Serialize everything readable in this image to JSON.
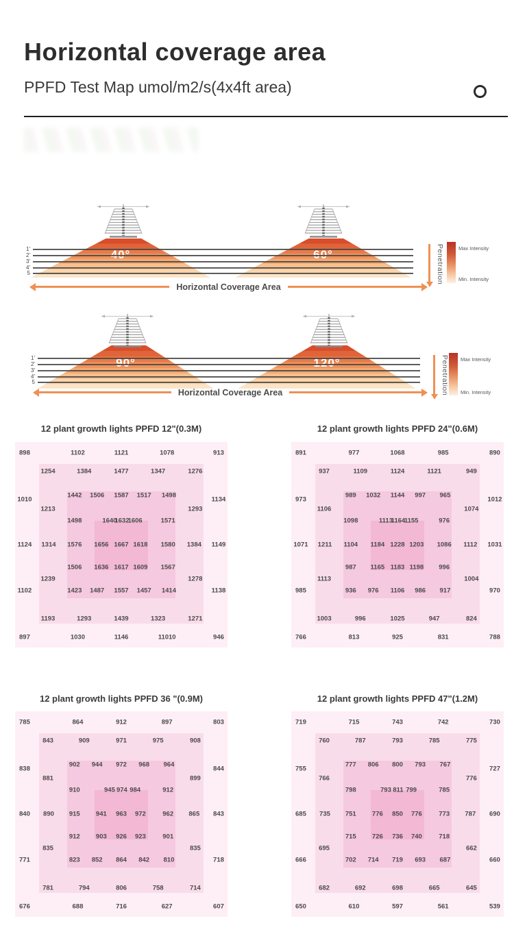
{
  "header": {
    "title": "Horizontal coverage area",
    "subtitle": "PPFD Test Map umol/m2/s(4x4ft area)"
  },
  "colors": {
    "accent_orange": "#EF9054",
    "cone_top": "#D84D2A",
    "cone_bottom": "#FCE4C6",
    "intensity_max": "#B93226",
    "heat_levels": [
      "#FDEFF5",
      "#F9DCEA",
      "#F5C9DF",
      "#F2B8D4"
    ],
    "text_dark": "#4A4A4A"
  },
  "diagrams": [
    {
      "angle_left": "40°",
      "angle_right": "60°",
      "depth_labels": [
        "1'",
        "2'",
        "3'",
        "4'",
        "5"
      ],
      "coverage_label": "Horizontal Coverage Area",
      "penetration_label": "Penetration",
      "max_intensity_label": "Max Intensity",
      "min_intensity_label": "Min. Intensity"
    },
    {
      "angle_left": "90°",
      "angle_right": "120°",
      "depth_labels": [
        "1'",
        "2'",
        "3'",
        "4'",
        "5"
      ],
      "coverage_label": "Horizontal Coverage Area",
      "penetration_label": "Penetration",
      "max_intensity_label": "Max Intensity",
      "min_intensity_label": "Min. Intensity"
    }
  ],
  "chart_data": [
    {
      "type": "heatmap",
      "title": "12 plant growth lights  PPFD 12\"(0.3M)",
      "unit": "umol/m2/s",
      "values": [
        [
          898,
          1102,
          1121,
          1078,
          913
        ],
        [
          1254,
          1384,
          1477,
          1347,
          1276
        ],
        [
          1442,
          1506,
          1587,
          1517,
          1498
        ],
        [
          1010,
          1134
        ],
        [
          1213,
          1293
        ],
        [
          1498,
          1640,
          1632,
          1606,
          1571
        ],
        [
          1124,
          1314,
          1576,
          1656,
          1667,
          1618,
          1580,
          1384,
          1149
        ],
        [
          1506,
          1636,
          1617,
          1609,
          1567
        ],
        [
          1239,
          1278
        ],
        [
          1102,
          1423,
          1487,
          1557,
          1457,
          1414,
          1138
        ],
        [
          1193,
          1293,
          1439,
          1323,
          1271
        ],
        [
          897,
          1030,
          1146,
          11010,
          946
        ]
      ]
    },
    {
      "type": "heatmap",
      "title": "12 plant growth lights  PPFD 24\"(0.6M)",
      "unit": "umol/m2/s",
      "values": [
        [
          891,
          977,
          1068,
          985,
          890
        ],
        [
          937,
          1109,
          1124,
          1121,
          949
        ],
        [
          989,
          1032,
          1144,
          997,
          965
        ],
        [
          973,
          1012
        ],
        [
          1106,
          1074
        ],
        [
          1098,
          1113,
          1164,
          1155,
          976
        ],
        [
          1071,
          1211,
          1104,
          1184,
          1228,
          1203,
          1086,
          1112,
          1031
        ],
        [
          987,
          1165,
          1183,
          1198,
          996
        ],
        [
          1113,
          1004
        ],
        [
          985,
          936,
          976,
          1106,
          986,
          917,
          970
        ],
        [
          1003,
          996,
          1025,
          947,
          824
        ],
        [
          766,
          813,
          925,
          831,
          788
        ]
      ]
    },
    {
      "type": "heatmap",
      "title": "12 plant growth lights PPFD 36 \"(0.9M)",
      "unit": "umol/m2/s",
      "values": [
        [
          785,
          864,
          912,
          897,
          803
        ],
        [
          843,
          909,
          971,
          975,
          908
        ],
        [
          902,
          944,
          972,
          968,
          964
        ],
        [
          838,
          844
        ],
        [
          881,
          899
        ],
        [
          910,
          945,
          974,
          984,
          912
        ],
        [
          840,
          890,
          915,
          941,
          963,
          972,
          962,
          865,
          843
        ],
        [
          912,
          903,
          926,
          923,
          901
        ],
        [
          835,
          835
        ],
        [
          771,
          823,
          852,
          864,
          842,
          810,
          718
        ],
        [
          781,
          794,
          806,
          758,
          714
        ],
        [
          676,
          688,
          716,
          627,
          607
        ]
      ]
    },
    {
      "type": "heatmap",
      "title": "12 plant growth lights  PPFD 47\"(1.2M)",
      "unit": "umol/m2/s",
      "values": [
        [
          719,
          715,
          743,
          742,
          730
        ],
        [
          760,
          787,
          793,
          785,
          775
        ],
        [
          777,
          806,
          800,
          793,
          767
        ],
        [
          755,
          727
        ],
        [
          766,
          776
        ],
        [
          798,
          793,
          811,
          799,
          785
        ],
        [
          685,
          735,
          751,
          776,
          850,
          776,
          773,
          787,
          690
        ],
        [
          715,
          726,
          736,
          740,
          718
        ],
        [
          695,
          662
        ],
        [
          666,
          702,
          714,
          719,
          693,
          687,
          660
        ],
        [
          682,
          692,
          698,
          665,
          645
        ],
        [
          650,
          610,
          597,
          561,
          539
        ]
      ]
    }
  ]
}
